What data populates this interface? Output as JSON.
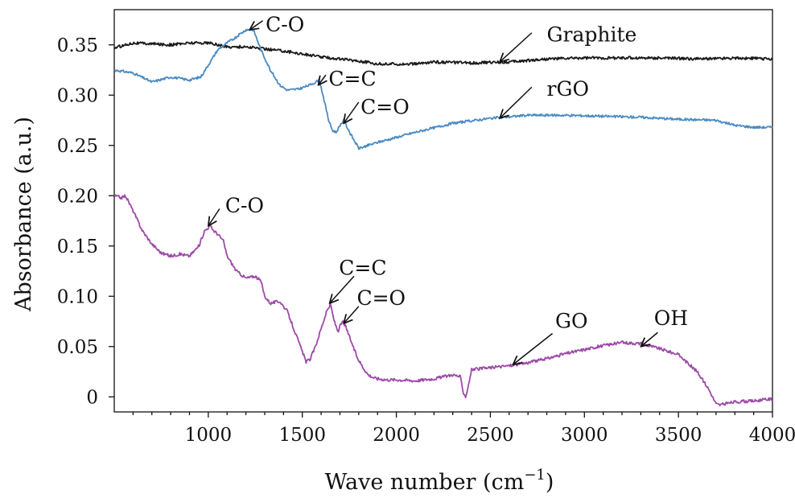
{
  "chart_data": {
    "type": "line",
    "xlabel": "Wave number (cm",
    "xlabel_sup": "−1",
    "xlabel_close": ")",
    "ylabel": "Absorbance (a.u.)",
    "xlim": [
      500,
      4000
    ],
    "ylim": [
      -0.015,
      0.385
    ],
    "x_ticks": [
      1000,
      1500,
      2000,
      2500,
      3000,
      3500,
      4000
    ],
    "x_tick_labels": [
      "1000",
      "1500",
      "2000",
      "2500",
      "3000",
      "3500",
      "4000"
    ],
    "y_ticks": [
      0,
      0.05,
      0.1,
      0.15,
      0.2,
      0.25,
      0.3,
      0.35
    ],
    "y_tick_labels": [
      "0",
      "0.05",
      "0.10",
      "0.15",
      "0.20",
      "0.25",
      "0.30",
      "0.35"
    ],
    "grid": false,
    "series": [
      {
        "name": "Graphite",
        "color": "#1a1a1a",
        "noise": 0.0014,
        "x": [
          500,
          600,
          800,
          900,
          1000,
          1100,
          1200,
          1300,
          1400,
          1600,
          1800,
          1900,
          2000,
          2100,
          2200,
          2400,
          2600,
          2800,
          3000,
          3200,
          3400,
          3600,
          3800,
          4000
        ],
        "y": [
          0.347,
          0.352,
          0.35,
          0.352,
          0.352,
          0.348,
          0.348,
          0.346,
          0.344,
          0.338,
          0.334,
          0.331,
          0.331,
          0.331,
          0.333,
          0.332,
          0.333,
          0.336,
          0.337,
          0.337,
          0.337,
          0.336,
          0.337,
          0.336
        ]
      },
      {
        "name": "rGO",
        "color": "#4a8bc2",
        "noise": 0.0012,
        "x": [
          500,
          600,
          700,
          800,
          900,
          960,
          1000,
          1050,
          1100,
          1150,
          1200,
          1240,
          1280,
          1330,
          1380,
          1420,
          1480,
          1540,
          1590,
          1610,
          1640,
          1660,
          1680,
          1700,
          1720,
          1760,
          1800,
          1850,
          1900,
          2000,
          2100,
          2300,
          2500,
          2700,
          2900,
          3100,
          3300,
          3500,
          3700,
          3800,
          3900,
          4000
        ],
        "y": [
          0.325,
          0.322,
          0.313,
          0.318,
          0.315,
          0.318,
          0.33,
          0.345,
          0.352,
          0.358,
          0.365,
          0.365,
          0.345,
          0.325,
          0.31,
          0.305,
          0.306,
          0.31,
          0.315,
          0.3,
          0.275,
          0.265,
          0.263,
          0.27,
          0.275,
          0.26,
          0.247,
          0.25,
          0.253,
          0.258,
          0.263,
          0.272,
          0.277,
          0.28,
          0.28,
          0.279,
          0.278,
          0.276,
          0.275,
          0.27,
          0.268,
          0.268
        ]
      },
      {
        "name": "GO",
        "color": "#9d4aa8",
        "noise": 0.0015,
        "x": [
          500,
          540,
          560,
          600,
          650,
          700,
          750,
          800,
          850,
          900,
          950,
          980,
          1010,
          1030,
          1050,
          1080,
          1100,
          1150,
          1200,
          1250,
          1280,
          1300,
          1330,
          1350,
          1380,
          1420,
          1460,
          1500,
          1520,
          1540,
          1570,
          1600,
          1630,
          1650,
          1670,
          1690,
          1700,
          1715,
          1730,
          1760,
          1790,
          1820,
          1850,
          1880,
          1900,
          1950,
          2000,
          2100,
          2200,
          2300,
          2340,
          2355,
          2370,
          2400,
          2500,
          2600,
          2700,
          2800,
          2900,
          3000,
          3100,
          3200,
          3300,
          3400,
          3500,
          3600,
          3660,
          3700,
          3720,
          3800,
          3900,
          4000
        ],
        "y": [
          0.2,
          0.198,
          0.2,
          0.185,
          0.165,
          0.152,
          0.143,
          0.14,
          0.142,
          0.14,
          0.15,
          0.165,
          0.17,
          0.165,
          0.162,
          0.155,
          0.14,
          0.125,
          0.118,
          0.12,
          0.115,
          0.1,
          0.093,
          0.094,
          0.095,
          0.085,
          0.065,
          0.045,
          0.035,
          0.037,
          0.05,
          0.068,
          0.085,
          0.092,
          0.075,
          0.065,
          0.07,
          0.075,
          0.07,
          0.055,
          0.04,
          0.03,
          0.022,
          0.019,
          0.018,
          0.017,
          0.017,
          0.016,
          0.018,
          0.022,
          0.02,
          0.005,
          0.0,
          0.027,
          0.029,
          0.031,
          0.034,
          0.038,
          0.043,
          0.047,
          0.051,
          0.054,
          0.053,
          0.048,
          0.042,
          0.025,
          0.008,
          -0.007,
          -0.008,
          -0.005,
          -0.004,
          -0.002
        ]
      }
    ],
    "annotations": [
      {
        "text": "Graphite",
        "at": [
          2550,
          0.333
        ],
        "from": [
          2720,
          0.362
        ],
        "label_at": [
          2800,
          0.36
        ]
      },
      {
        "text": "rGO",
        "at": [
          2550,
          0.277
        ],
        "from": [
          2720,
          0.308
        ],
        "label_at": [
          2800,
          0.306
        ]
      },
      {
        "text": "C-O",
        "at": [
          1220,
          0.365
        ],
        "from": [
          1290,
          0.374
        ],
        "label_at": [
          1305,
          0.37
        ]
      },
      {
        "text": "C=C",
        "at": [
          1585,
          0.31
        ],
        "from": [
          1625,
          0.32
        ],
        "label_at": [
          1640,
          0.316
        ]
      },
      {
        "text": "C=O",
        "at": [
          1720,
          0.272
        ],
        "from": [
          1800,
          0.293
        ],
        "label_at": [
          1810,
          0.288
        ]
      },
      {
        "text": "C-O",
        "at": [
          1000,
          0.17
        ],
        "from": [
          1060,
          0.187
        ],
        "label_at": [
          1090,
          0.19
        ]
      },
      {
        "text": "C=C",
        "at": [
          1645,
          0.093
        ],
        "from": [
          1775,
          0.12
        ],
        "label_at": [
          1695,
          0.128
        ]
      },
      {
        "text": "C=O",
        "at": [
          1720,
          0.073
        ],
        "from": [
          1800,
          0.09
        ],
        "label_at": [
          1790,
          0.098
        ]
      },
      {
        "text": "GO",
        "at": [
          2620,
          0.032
        ],
        "from": [
          2830,
          0.063
        ],
        "label_at": [
          2845,
          0.075
        ]
      },
      {
        "text": "OH",
        "at": [
          3300,
          0.05
        ],
        "from": [
          3390,
          0.064
        ],
        "label_at": [
          3370,
          0.078
        ]
      }
    ]
  }
}
